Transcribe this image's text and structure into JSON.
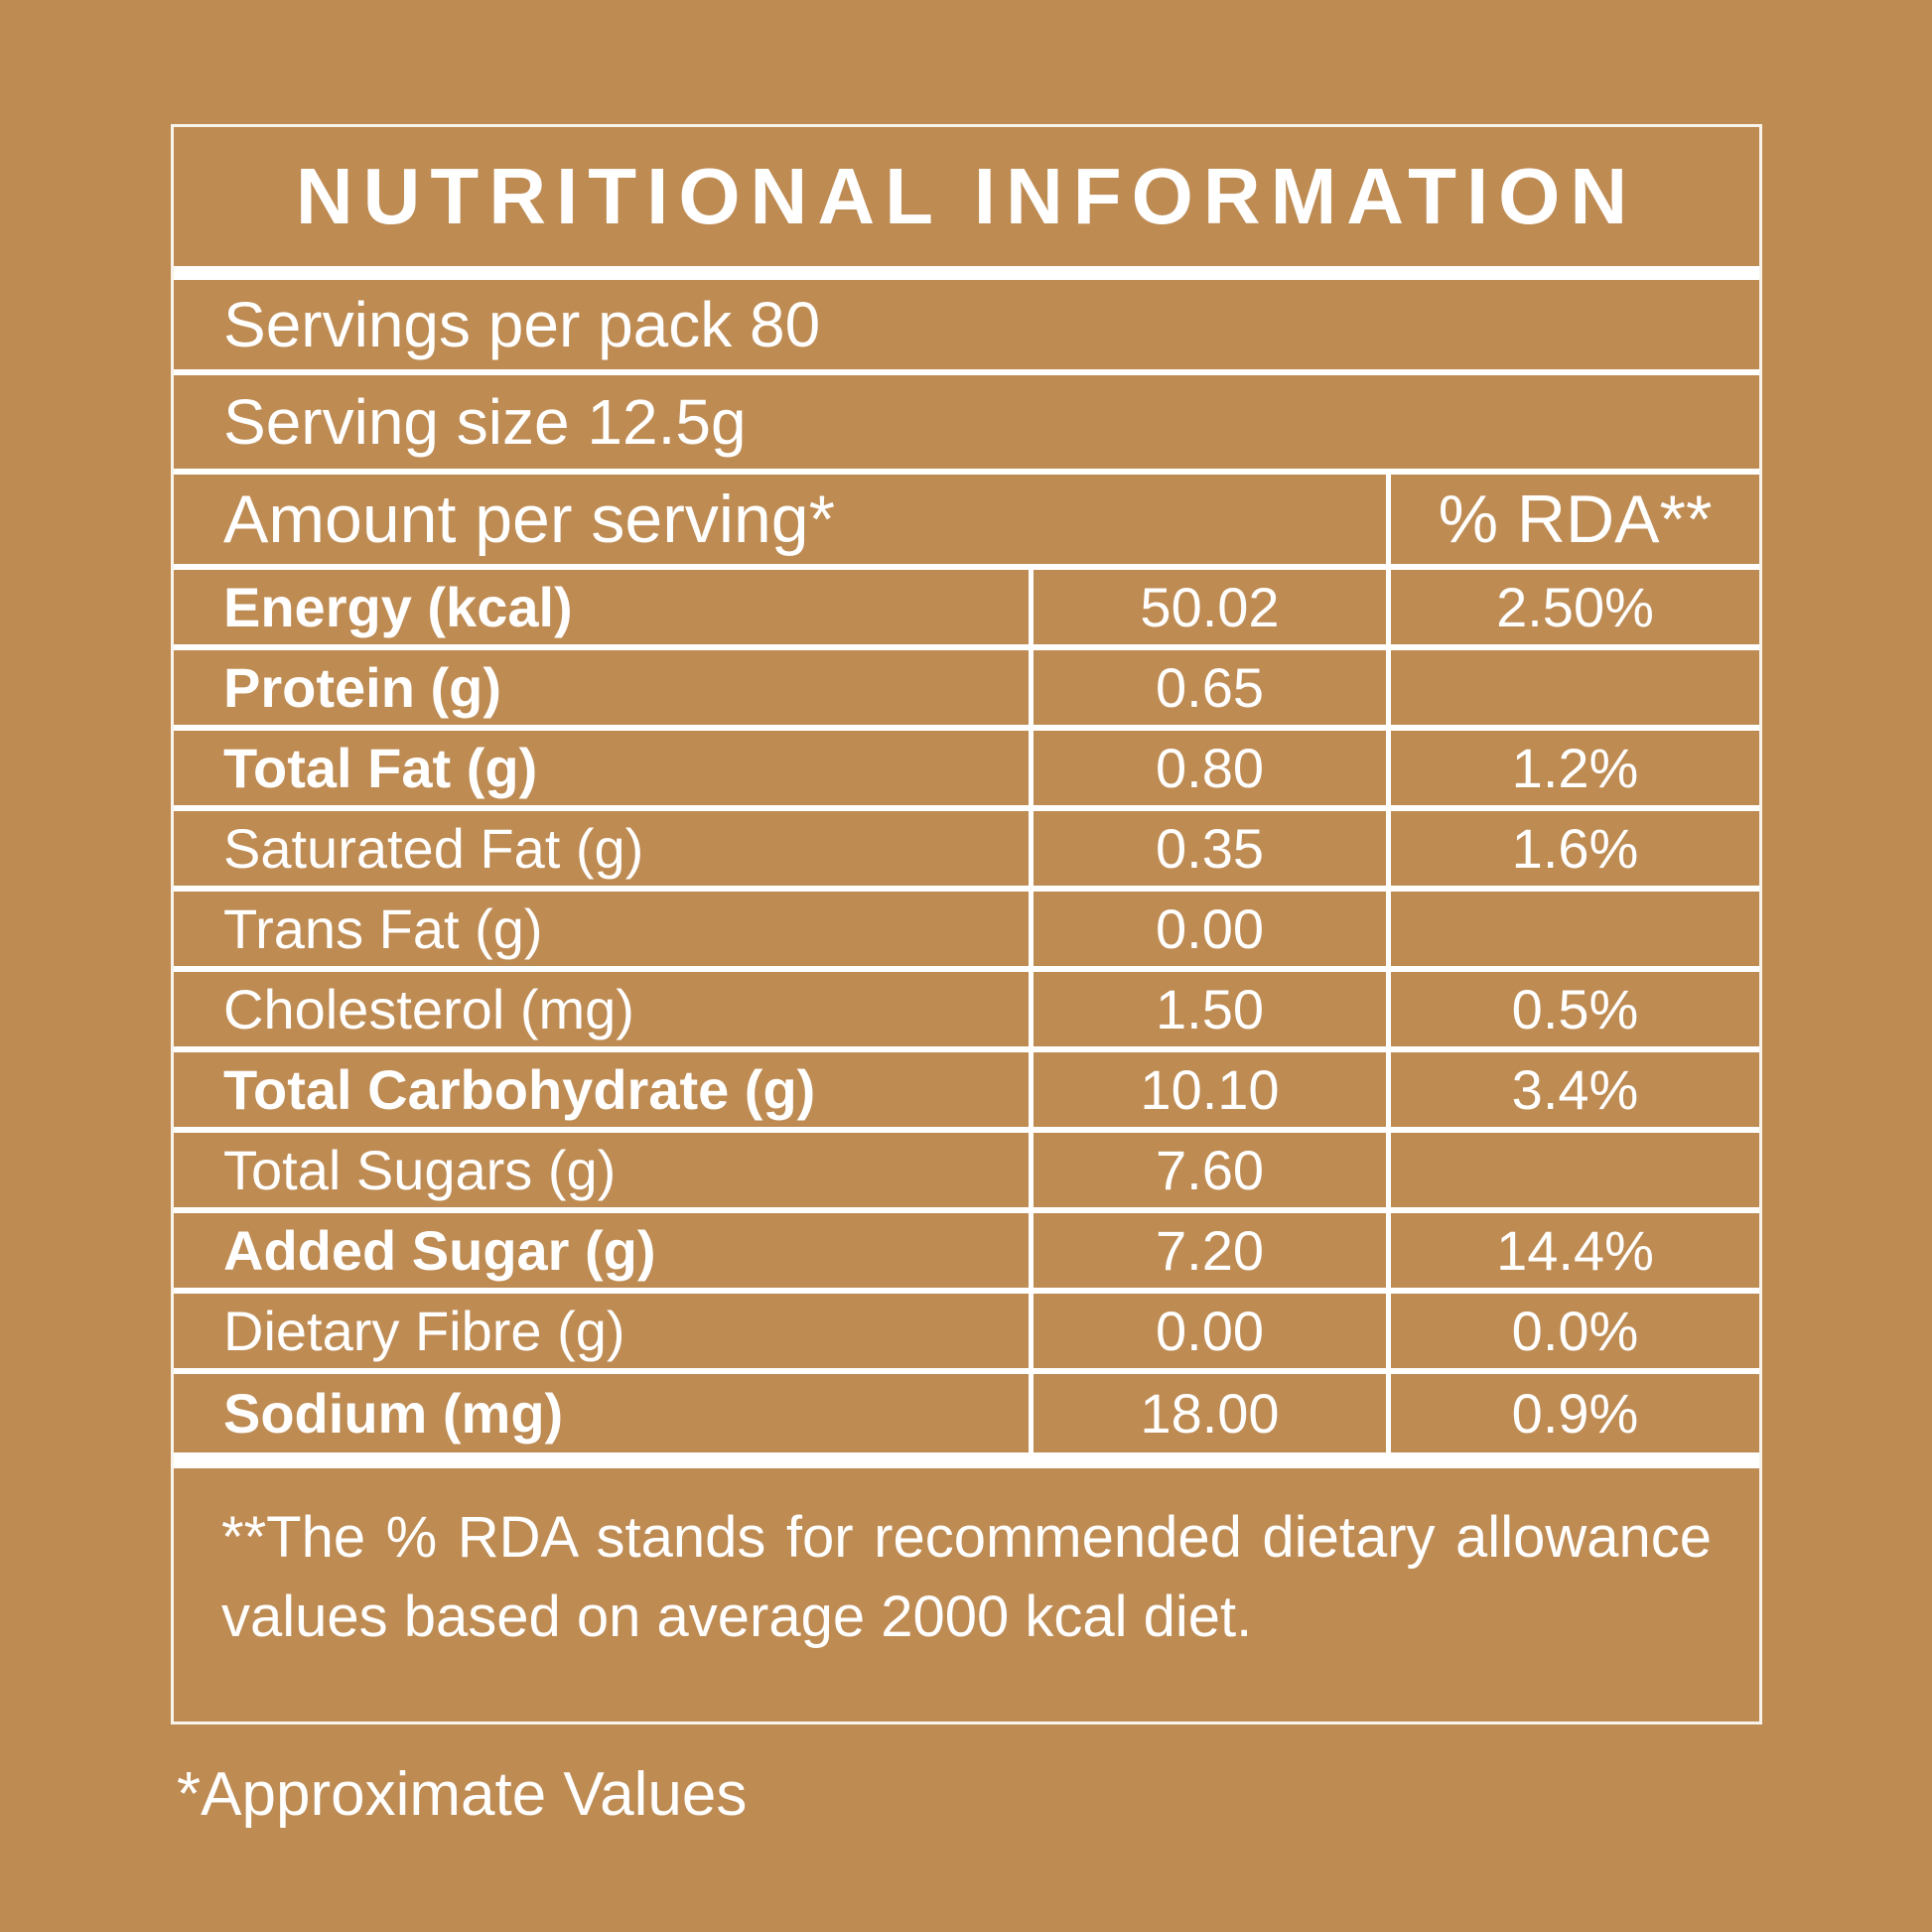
{
  "colors": {
    "background": "#BE8B53",
    "text": "#FFFFFF",
    "lines": "#FFFFFF"
  },
  "panel": {
    "title": "NUTRITIONAL INFORMATION",
    "servings_per_pack": "Servings per pack 80",
    "serving_size": "Serving size 12.5g"
  },
  "table": {
    "header": {
      "amount_label": "Amount per serving*",
      "rda_label": "% RDA**"
    },
    "rows": [
      {
        "label": "Energy (kcal)",
        "value": "50.02",
        "rda": "2.50%"
      },
      {
        "label": "Protein (g)",
        "value": "0.65",
        "rda": ""
      },
      {
        "label": "Total Fat (g)",
        "value": "0.80",
        "rda": "1.2%"
      },
      {
        "label": "Saturated Fat (g)",
        "value": "0.35",
        "rda": "1.6%"
      },
      {
        "label": "Trans Fat (g)",
        "value": "0.00",
        "rda": ""
      },
      {
        "label": "Cholesterol (mg)",
        "value": "1.50",
        "rda": "0.5%"
      },
      {
        "label": "Total Carbohydrate (g)",
        "value": "10.10",
        "rda": "3.4%"
      },
      {
        "label": "Total Sugars (g)",
        "value": "7.60",
        "rda": ""
      },
      {
        "label": "Added  Sugar (g)",
        "value": "7.20",
        "rda": "14.4%"
      },
      {
        "label": "Dietary Fibre (g)",
        "value": "0.00",
        "rda": "0.0%"
      },
      {
        "label": "Sodium (mg)",
        "value": "18.00",
        "rda": "0.9%"
      }
    ]
  },
  "footnote": "**The % RDA stands for recommended dietary allowance values based on average 2000 kcal diet.",
  "approximate_note": "*Approximate Values"
}
